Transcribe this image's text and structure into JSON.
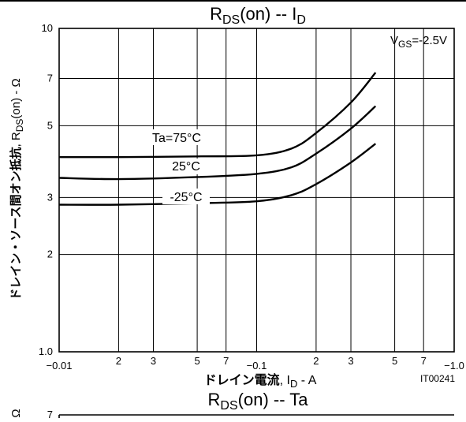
{
  "chart_data": [
    {
      "type": "line",
      "title_main": "R",
      "title_sub": "DS",
      "title_rest": "(on)  --  I",
      "title_sub2": "D",
      "x_scale": "log",
      "y_scale": "log",
      "xlim": [
        0.01,
        1.0
      ],
      "ylim": [
        1.0,
        10
      ],
      "x_ticks": [
        {
          "value": 0.01,
          "label": "−0.01"
        },
        {
          "value": 0.02,
          "label": "2"
        },
        {
          "value": 0.03,
          "label": "3"
        },
        {
          "value": 0.05,
          "label": "5"
        },
        {
          "value": 0.07,
          "label": "7"
        },
        {
          "value": 0.1,
          "label": "−0.1"
        },
        {
          "value": 0.2,
          "label": "2"
        },
        {
          "value": 0.3,
          "label": "3"
        },
        {
          "value": 0.5,
          "label": "5"
        },
        {
          "value": 0.7,
          "label": "7"
        },
        {
          "value": 1.0,
          "label": "−1.0"
        }
      ],
      "y_ticks": [
        {
          "value": 1.0,
          "label": "1.0"
        },
        {
          "value": 2,
          "label": "2"
        },
        {
          "value": 3,
          "label": "3"
        },
        {
          "value": 5,
          "label": "5"
        },
        {
          "value": 7,
          "label": "7"
        },
        {
          "value": 10,
          "label": "10"
        }
      ],
      "xlabel_jp": "ドレイン電流",
      "xlabel_rest": ", I",
      "xlabel_sub": "D",
      "xlabel_unit": " - A",
      "ylabel_jp": "ドレイン・ソース間オン抵抗",
      "ylabel_rest": ", R",
      "ylabel_sub": "DS",
      "ylabel_unit": "(on) - Ω",
      "condition_main": "V",
      "condition_sub": "GS",
      "condition_rest": "=-2.5V",
      "figure_code": "IT00241",
      "series": [
        {
          "name": "Ta=75°C",
          "x": [
            0.01,
            0.02,
            0.05,
            0.1,
            0.15,
            0.2,
            0.3,
            0.4
          ],
          "y": [
            4.0,
            4.0,
            4.02,
            4.05,
            4.25,
            4.75,
            5.9,
            7.3
          ]
        },
        {
          "name": "25°C",
          "x": [
            0.01,
            0.02,
            0.05,
            0.1,
            0.15,
            0.2,
            0.3,
            0.4
          ],
          "y": [
            3.45,
            3.42,
            3.47,
            3.55,
            3.72,
            4.1,
            4.9,
            5.75
          ]
        },
        {
          "name": "-25°C",
          "x": [
            0.01,
            0.02,
            0.05,
            0.1,
            0.15,
            0.2,
            0.3,
            0.4
          ],
          "y": [
            2.85,
            2.85,
            2.88,
            2.92,
            3.05,
            3.3,
            3.85,
            4.4
          ]
        }
      ]
    },
    {
      "type": "line",
      "title_main": "R",
      "title_sub": "DS",
      "title_rest": "(on)  --  Ta",
      "y_first_tick": "7",
      "y_axis_symbol": "Ω"
    }
  ]
}
